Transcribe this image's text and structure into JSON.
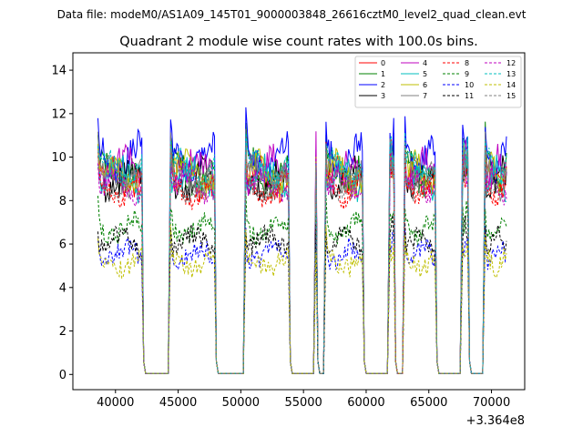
{
  "suptitle": "Data file: modeM0/AS1A09_145T01_9000003848_26616cztM0_level2_quad_clean.evt",
  "chart_data": {
    "type": "line",
    "title": "Quadrant 2 module wise count rates with 100.0s bins.",
    "xlabel": "",
    "ylabel": "",
    "x_offset_label": "+3.364e8",
    "xlim": [
      36600,
      72650
    ],
    "ylim": [
      -0.7,
      14.8
    ],
    "xticks": [
      40000,
      45000,
      50000,
      55000,
      60000,
      65000,
      70000
    ],
    "xtick_labels": [
      "40000",
      "45000",
      "50000",
      "55000",
      "60000",
      "65000",
      "70000"
    ],
    "yticks": [
      0,
      2,
      4,
      6,
      8,
      10,
      12,
      14
    ],
    "ytick_labels": [
      "0",
      "2",
      "4",
      "6",
      "8",
      "10",
      "12",
      "14"
    ],
    "legend_position": "top-right",
    "segments": [
      [
        38600,
        42100
      ],
      [
        44400,
        47900
      ],
      [
        50400,
        53800
      ],
      [
        56000,
        56000
      ],
      [
        56800,
        59700
      ],
      [
        61900,
        62200
      ],
      [
        63100,
        65500
      ],
      [
        67700,
        68100
      ],
      [
        69500,
        71200
      ]
    ],
    "gap_level": 0.05,
    "series": [
      {
        "name": "0",
        "color": "#ff0000",
        "dashed": false,
        "level": 9.3
      },
      {
        "name": "1",
        "color": "#008000",
        "dashed": false,
        "level": 9.6
      },
      {
        "name": "2",
        "color": "#0000ff",
        "dashed": false,
        "level": 10.3
      },
      {
        "name": "3",
        "color": "#000000",
        "dashed": false,
        "level": 9.2
      },
      {
        "name": "4",
        "color": "#bf00bf",
        "dashed": false,
        "level": 9.7
      },
      {
        "name": "5",
        "color": "#00bfbf",
        "dashed": false,
        "level": 9.3
      },
      {
        "name": "6",
        "color": "#bfbf00",
        "dashed": false,
        "level": 9.5
      },
      {
        "name": "7",
        "color": "#808080",
        "dashed": false,
        "level": 9.4
      },
      {
        "name": "8",
        "color": "#ff0000",
        "dashed": true,
        "level": 8.8
      },
      {
        "name": "9",
        "color": "#008000",
        "dashed": true,
        "level": 6.9
      },
      {
        "name": "10",
        "color": "#0000ff",
        "dashed": true,
        "level": 5.7
      },
      {
        "name": "11",
        "color": "#000000",
        "dashed": true,
        "level": 6.3
      },
      {
        "name": "12",
        "color": "#bf00bf",
        "dashed": true,
        "level": 9.0
      },
      {
        "name": "13",
        "color": "#00bfbf",
        "dashed": true,
        "level": 9.8
      },
      {
        "name": "14",
        "color": "#bfbf00",
        "dashed": true,
        "level": 5.3
      },
      {
        "name": "15",
        "color": "#808080",
        "dashed": true,
        "level": 9.1
      }
    ]
  }
}
